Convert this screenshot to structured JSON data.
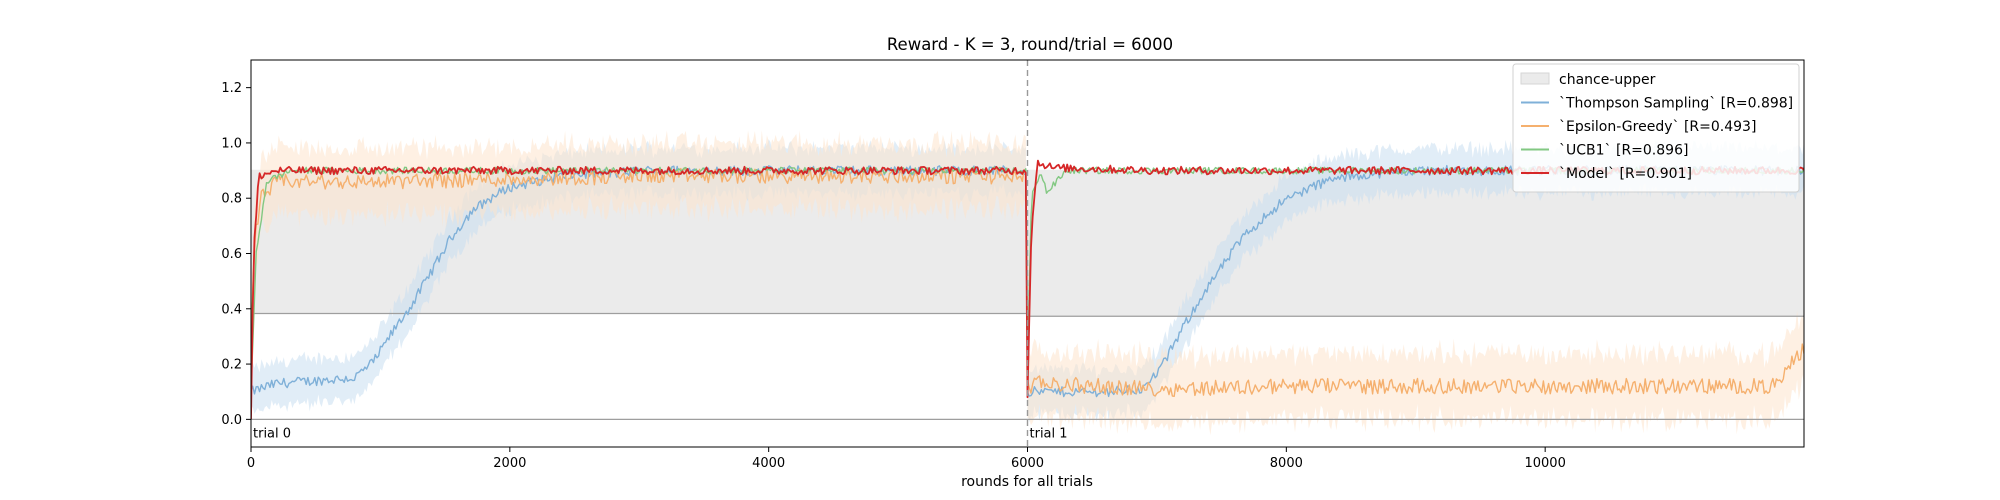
{
  "chart_data": {
    "type": "line",
    "title": "Reward - K = 3, round/trial = 6000",
    "xlabel": "rounds for all trials",
    "ylabel": "",
    "xlim": [
      0,
      12000
    ],
    "ylim": [
      -0.1,
      1.3
    ],
    "x_ticks": [
      0,
      2000,
      4000,
      6000,
      8000,
      10000
    ],
    "y_ticks": [
      0.0,
      0.2,
      0.4,
      0.6,
      0.8,
      1.0,
      1.2
    ],
    "grid": false,
    "legend_position": "top-right",
    "trial_boundaries": [
      6000
    ],
    "trial_labels": [
      {
        "text": "trial 0",
        "x": 0
      },
      {
        "text": "trial 1",
        "x": 6000
      }
    ],
    "reference_lines": [
      {
        "y": 0.0,
        "color": "#9e9e9e"
      },
      {
        "y": 0.383,
        "x_range": [
          0,
          6000
        ],
        "color": "#9e9e9e"
      },
      {
        "y": 0.373,
        "x_range": [
          6000,
          12000
        ],
        "color": "#9e9e9e"
      }
    ],
    "bands": [
      {
        "name": "chance-upper",
        "segments": [
          {
            "x_range": [
              0,
              6000
            ],
            "lower": 0.383,
            "upper": 0.903
          },
          {
            "x_range": [
              6000,
              12000
            ],
            "lower": 0.373,
            "upper": 0.903
          }
        ],
        "color": "#ebebeb"
      }
    ],
    "series": [
      {
        "name": "`Thompson Sampling` [R=0.898]",
        "color": "#7fb0d8",
        "band_color": "#c9dff0",
        "x": [
          0,
          200,
          500,
          800,
          950,
          1100,
          1250,
          1400,
          1550,
          1700,
          1850,
          2000,
          2200,
          2400,
          2600,
          2800,
          3000,
          4000,
          5000,
          5990,
          6000,
          6300,
          6600,
          6900,
          7050,
          7200,
          7350,
          7500,
          7650,
          7800,
          7950,
          8100,
          8300,
          8500,
          8700,
          9000,
          10000,
          11000,
          12000
        ],
        "y": [
          0.1,
          0.13,
          0.14,
          0.15,
          0.21,
          0.32,
          0.42,
          0.54,
          0.66,
          0.75,
          0.8,
          0.84,
          0.86,
          0.88,
          0.89,
          0.89,
          0.9,
          0.9,
          0.9,
          0.9,
          0.1,
          0.1,
          0.1,
          0.11,
          0.2,
          0.33,
          0.45,
          0.55,
          0.65,
          0.72,
          0.78,
          0.82,
          0.86,
          0.88,
          0.89,
          0.9,
          0.9,
          0.9,
          0.9
        ],
        "band": 0.08
      },
      {
        "name": "`Epsilon-Greedy` [R=0.493]",
        "color": "#f5b06e",
        "band_color": "#fde4cc",
        "x": [
          0,
          30,
          80,
          200,
          400,
          1000,
          2000,
          3000,
          4000,
          5000,
          5990,
          6000,
          6100,
          6500,
          7000,
          8000,
          9000,
          10000,
          11000,
          11800,
          11900,
          12000
        ],
        "y": [
          0.3,
          0.65,
          0.8,
          0.86,
          0.86,
          0.86,
          0.87,
          0.88,
          0.88,
          0.88,
          0.88,
          0.12,
          0.13,
          0.12,
          0.11,
          0.12,
          0.12,
          0.12,
          0.12,
          0.12,
          0.2,
          0.26
        ],
        "band": 0.12
      },
      {
        "name": "`UCB1` [R=0.896]",
        "color": "#82c882",
        "x": [
          0,
          40,
          120,
          300,
          1000,
          2000,
          3000,
          4000,
          5000,
          5990,
          6000,
          6030,
          6100,
          6150,
          6300,
          7000,
          8000,
          9000,
          10000,
          11000,
          12000
        ],
        "y": [
          0.1,
          0.6,
          0.86,
          0.9,
          0.9,
          0.9,
          0.9,
          0.9,
          0.9,
          0.9,
          0.18,
          0.8,
          0.9,
          0.82,
          0.9,
          0.9,
          0.9,
          0.9,
          0.9,
          0.9,
          0.9
        ],
        "band": 0.0
      },
      {
        "name": "`Model` [R=0.901]",
        "color": "#d62728",
        "x": [
          0,
          20,
          60,
          200,
          1000,
          2000,
          3000,
          4000,
          5000,
          5990,
          6000,
          6030,
          6080,
          6200,
          7000,
          8000,
          9000,
          10000,
          11000,
          12000
        ],
        "y": [
          0.0,
          0.6,
          0.88,
          0.9,
          0.9,
          0.9,
          0.9,
          0.9,
          0.9,
          0.9,
          0.08,
          0.7,
          0.93,
          0.91,
          0.9,
          0.9,
          0.9,
          0.9,
          0.9,
          0.9
        ],
        "band": 0.0
      }
    ],
    "noise": [
      0.018,
      0.028,
      0.012,
      0.014
    ]
  }
}
